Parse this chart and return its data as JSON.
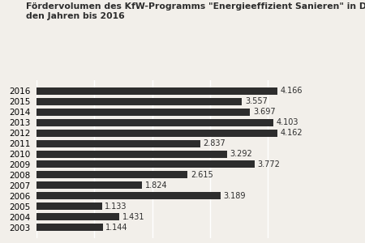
{
  "title_line1": "Fördervolumen des KfW-Programms \"Energieeffizient Sanieren\" in Deutschland in",
  "title_line2": "den Jahren bis 2016",
  "years": [
    "2016",
    "2015",
    "2014",
    "2013",
    "2012",
    "2011",
    "2010",
    "2009",
    "2008",
    "2007",
    "2006",
    "2005",
    "2004",
    "2003"
  ],
  "values": [
    4.166,
    3.557,
    3.697,
    4.103,
    4.162,
    2.837,
    3.292,
    3.772,
    2.615,
    1.824,
    3.189,
    1.133,
    1.431,
    1.144
  ],
  "bar_color": "#2d2d2d",
  "bg_color": "#f2efea",
  "grid_color": "#ffffff",
  "label_color": "#2d2d2d",
  "title_fontsize": 7.8,
  "label_fontsize": 7.0,
  "tick_fontsize": 7.5,
  "xlim": [
    0,
    4.8
  ],
  "bar_height": 0.7
}
